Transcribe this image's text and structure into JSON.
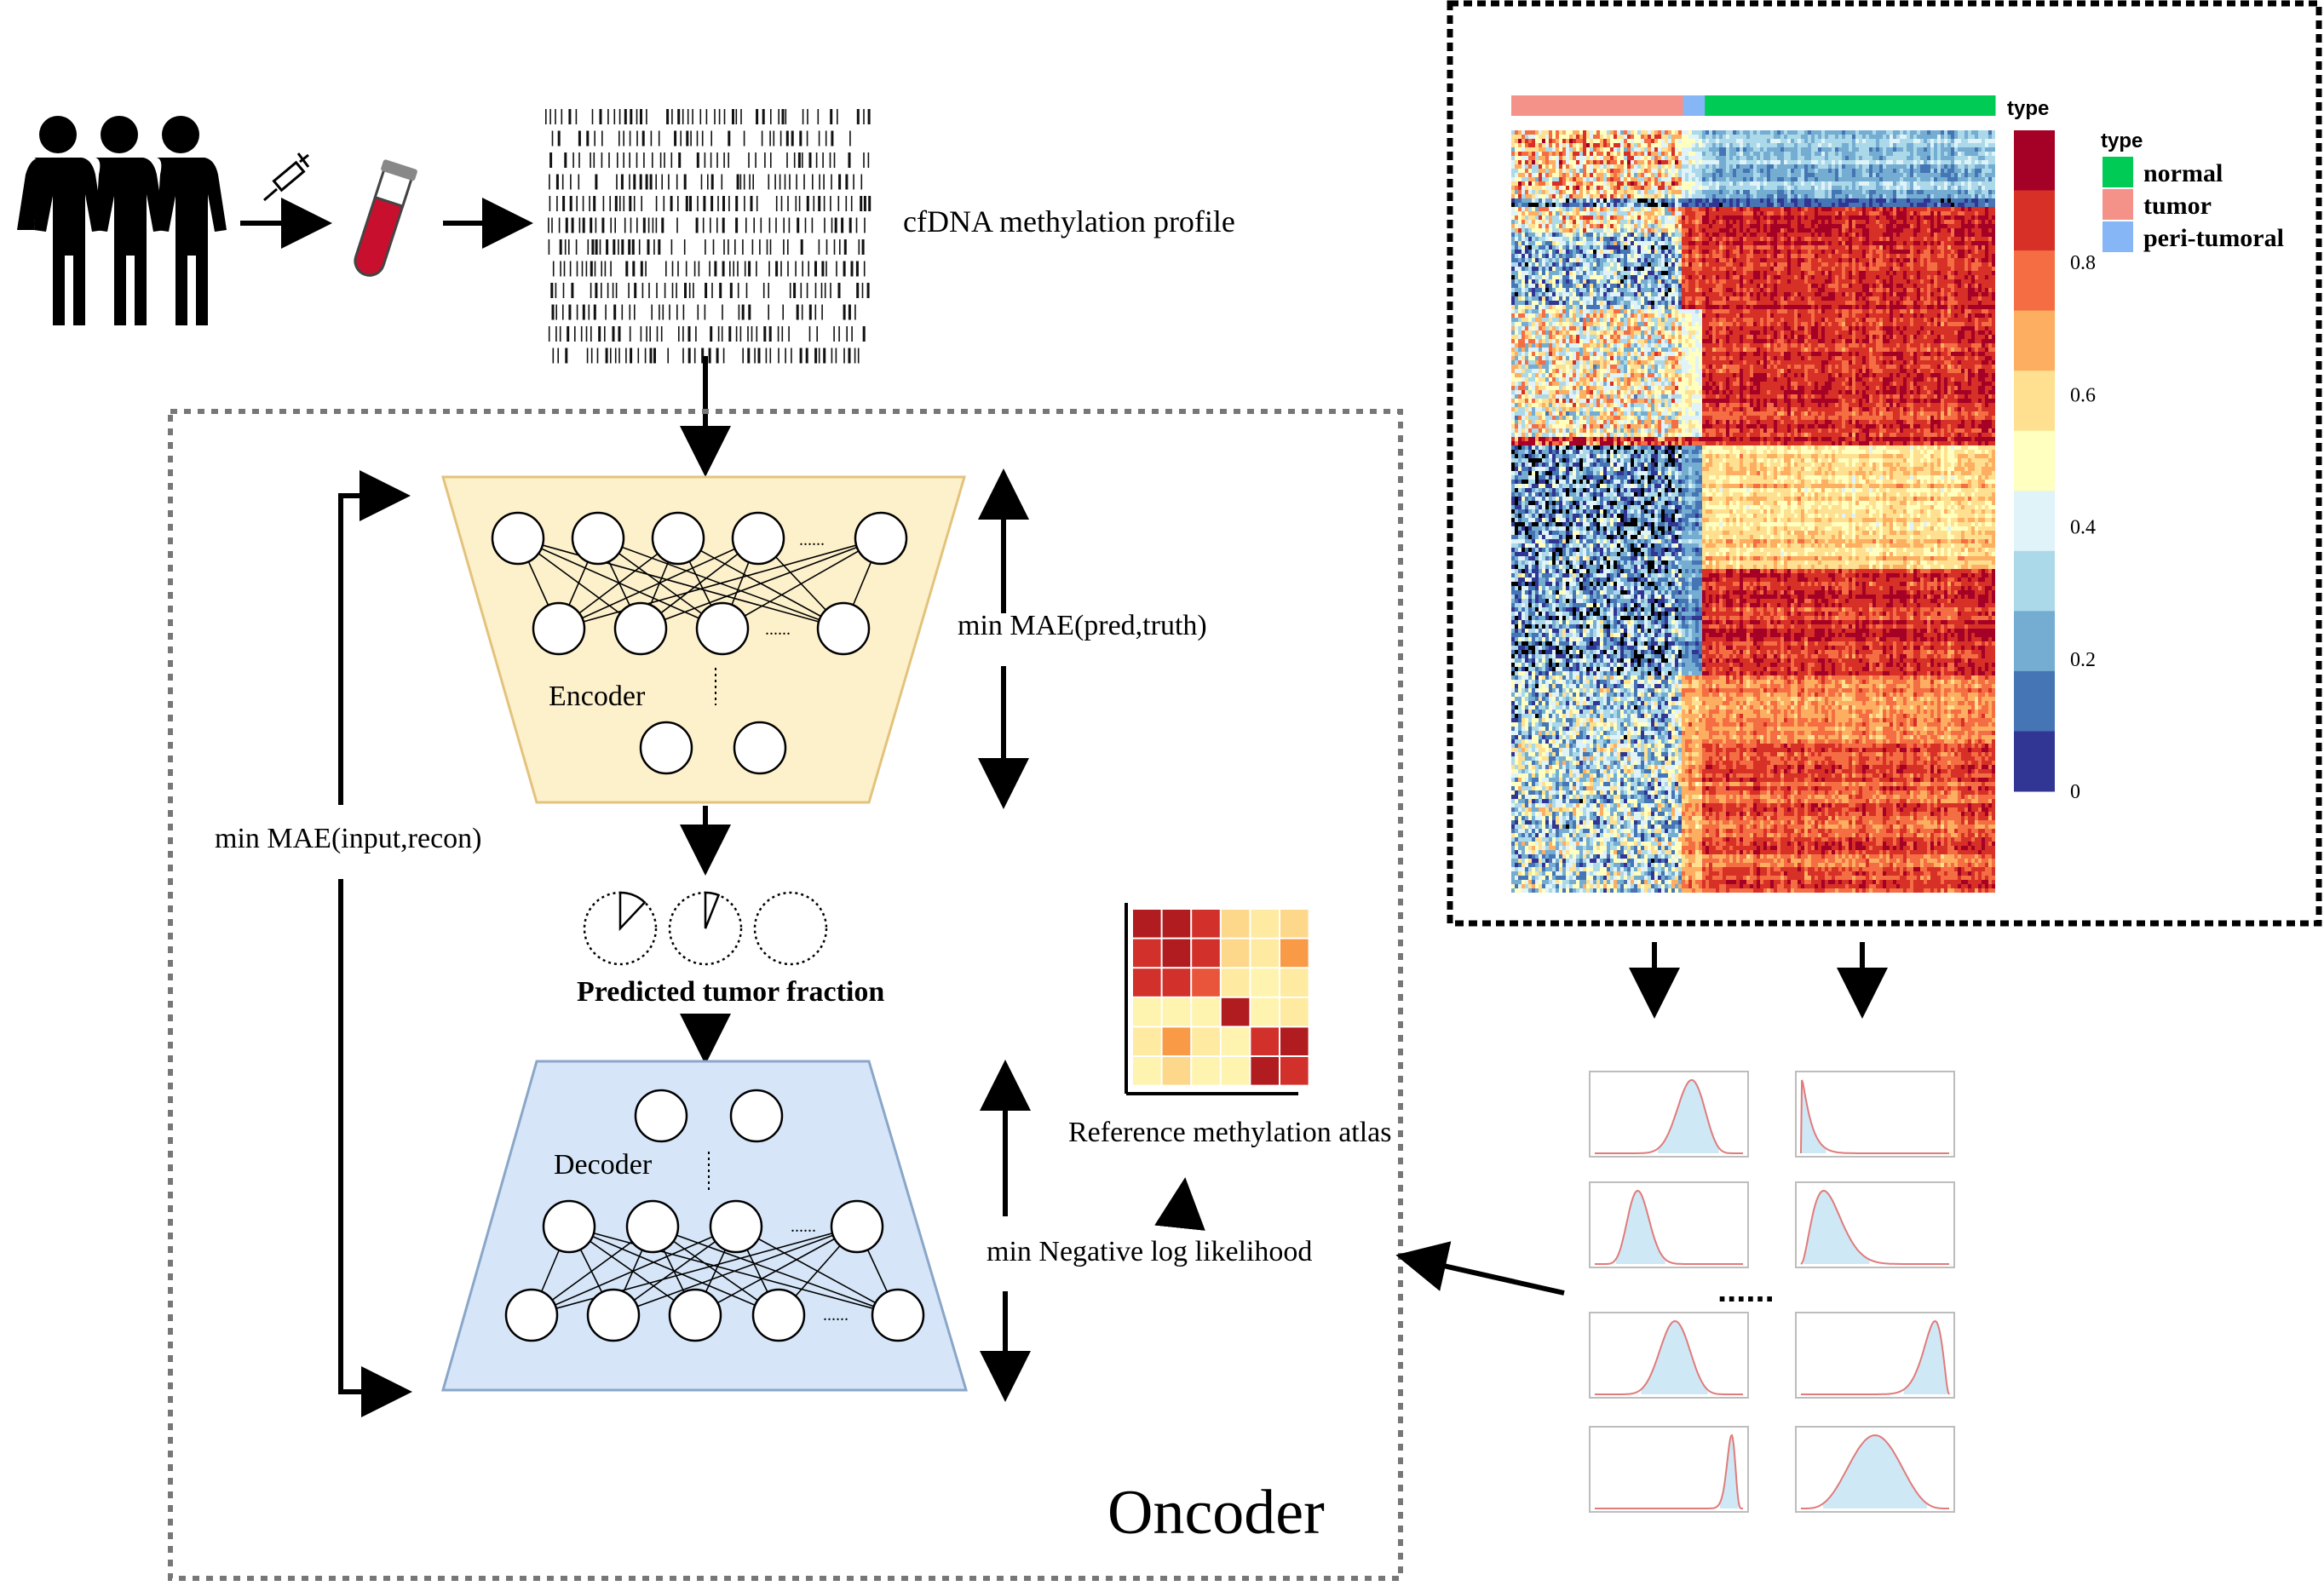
{
  "labels": {
    "cfdna": "cfDNA methylation profile",
    "encoder": "Encoder",
    "decoder": "Decoder",
    "min_mae_pred": "min MAE(pred,truth)",
    "min_mae_input": "min MAE(input,recon)",
    "predicted_fraction": "Predicted tumor fraction",
    "reference_atlas": "Reference methylation atlas",
    "min_nll": "min Negative log likelihood",
    "oncoder": "Oncoder",
    "dots_neurons": "......",
    "dots_beta": "......"
  },
  "heatmap": {
    "top_annotation_title": "type",
    "legend_title": "type",
    "legend_items": [
      {
        "label": "normal",
        "color": "#00cc55"
      },
      {
        "label": "tumor",
        "color": "#f4928a"
      },
      {
        "label": "peri-tumoral",
        "color": "#86b6f6"
      }
    ],
    "colorbar_ticks": [
      "0.8",
      "0.6",
      "0.4",
      "0.2",
      "0"
    ],
    "colorbar_colors": [
      "#a50026",
      "#d73027",
      "#f46d43",
      "#fdae61",
      "#fee090",
      "#ffffbf",
      "#e0f3f8",
      "#abd9e9",
      "#74add1",
      "#4575b4",
      "#313695"
    ],
    "annotation_groups": [
      {
        "label": "tumor",
        "fraction": 0.355,
        "color": "#f4928a"
      },
      {
        "label": "peri-tumoral",
        "fraction": 0.045,
        "color": "#86b6f6"
      },
      {
        "label": "normal",
        "fraction": 0.6,
        "color": "#00cc55"
      }
    ]
  },
  "pie_fractions": [
    0.12,
    0.06,
    0.0
  ],
  "atlas_matrix": [
    [
      9,
      9,
      8,
      4,
      3,
      4
    ],
    [
      8,
      9,
      8,
      4,
      3,
      6
    ],
    [
      8,
      8,
      7,
      3,
      2,
      3
    ],
    [
      2,
      2,
      2,
      9,
      2,
      3
    ],
    [
      3,
      6,
      3,
      2,
      8,
      9
    ],
    [
      2,
      4,
      2,
      2,
      9,
      8
    ]
  ],
  "beta_distributions": [
    {
      "a": 18,
      "b": 10
    },
    {
      "a": 1.1,
      "b": 18
    },
    {
      "a": 12,
      "b": 28
    },
    {
      "a": 3,
      "b": 12
    },
    {
      "a": 14,
      "b": 12
    },
    {
      "a": 20,
      "b": 3
    },
    {
      "a": 85,
      "b": 8
    },
    {
      "a": 5,
      "b": 5
    }
  ]
}
